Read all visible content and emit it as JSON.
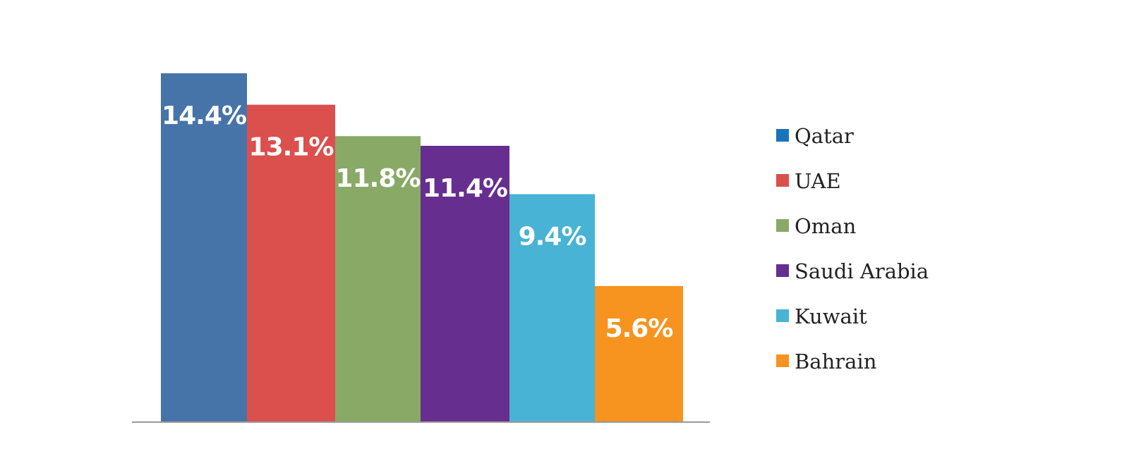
{
  "chart_data": {
    "type": "bar",
    "categories": [
      "Qatar",
      "UAE",
      "Oman",
      "Saudi Arabia",
      "Kuwait",
      "Bahrain"
    ],
    "values": [
      14.4,
      13.1,
      11.8,
      11.4,
      9.4,
      5.6
    ],
    "value_labels": [
      "14.4%",
      "13.1%",
      "11.8%",
      "11.4%",
      "9.4%",
      "5.6%"
    ],
    "colors": [
      "#4674a8",
      "#db4f4d",
      "#89aa66",
      "#662e8f",
      "#48b3d4",
      "#f6941f"
    ],
    "legend_colors": [
      "#1a74bb",
      "#db4f4d",
      "#89aa66",
      "#662e8f",
      "#48b3d4",
      "#f6941f"
    ],
    "ylim": [
      0,
      14.4
    ],
    "legend": {
      "position": "right",
      "items": [
        "Qatar",
        "UAE",
        "Oman",
        "Saudi Arabia",
        "Kuwait",
        "Bahrain"
      ]
    },
    "grid": false
  }
}
